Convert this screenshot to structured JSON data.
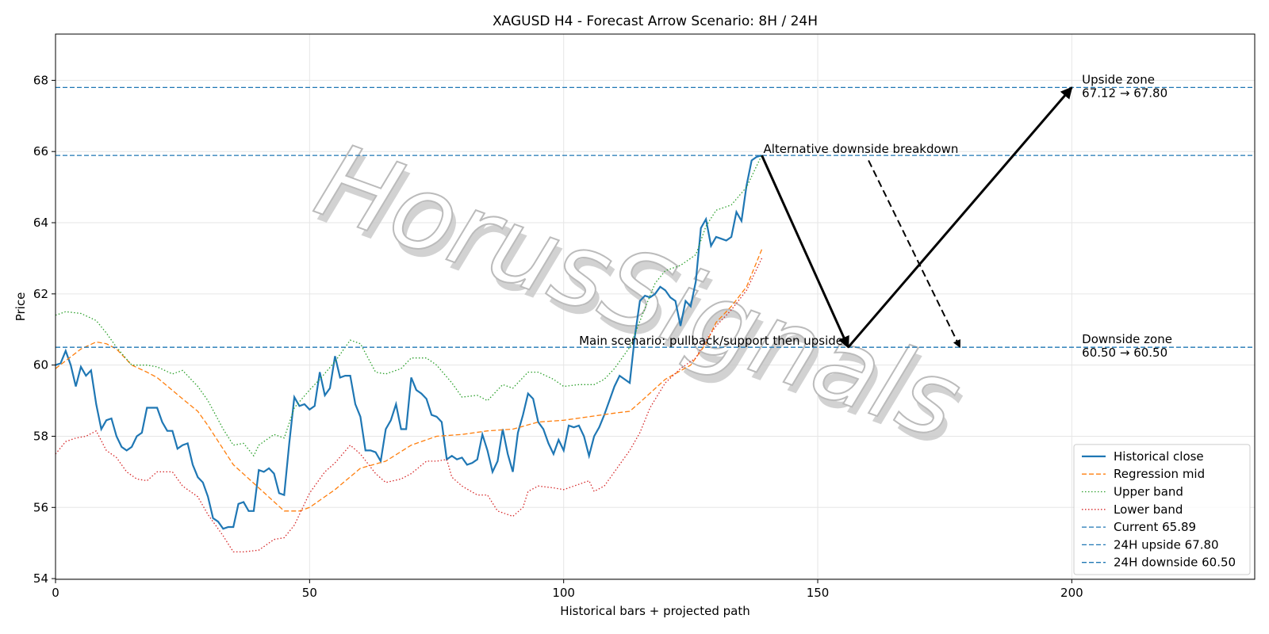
{
  "chart_data": {
    "type": "line",
    "title": "XAGUSD H4 - Forecast Arrow Scenario: 8H / 24H",
    "xlabel": "Historical bars + projected path",
    "ylabel": "Price",
    "watermark": "HorusSignals",
    "xlim": [
      0,
      236
    ],
    "ylim": [
      53.98,
      69.3
    ],
    "xticks": [
      0,
      50,
      100,
      150,
      200
    ],
    "yticks": [
      54,
      56,
      58,
      60,
      62,
      64,
      66,
      68
    ],
    "grid": true,
    "legend": "lower right",
    "series": [
      {
        "name": "Historical close",
        "color": "#1f77b4",
        "style": "solid",
        "x": [
          0,
          1,
          2,
          3,
          4,
          5,
          6,
          7,
          8,
          9,
          10,
          11,
          12,
          13,
          14,
          15,
          16,
          17,
          18,
          19,
          20,
          21,
          22,
          23,
          24,
          25,
          26,
          27,
          28,
          29,
          30,
          31,
          32,
          33,
          34,
          35,
          36,
          37,
          38,
          39,
          40,
          41,
          42,
          43,
          44,
          45,
          46,
          47,
          48,
          49,
          50,
          51,
          52,
          53,
          54,
          55,
          56,
          57,
          58,
          59,
          60,
          61,
          62,
          63,
          64,
          65,
          66,
          67,
          68,
          69,
          70,
          71,
          72,
          73,
          74,
          75,
          76,
          77,
          78,
          79,
          80,
          81,
          82,
          83,
          84,
          85,
          86,
          87,
          88,
          89,
          90,
          91,
          92,
          93,
          94,
          95,
          96,
          97,
          98,
          99,
          100,
          101,
          102,
          103,
          104,
          105,
          106,
          107,
          108,
          109,
          110,
          111,
          112,
          113,
          114,
          115,
          116,
          117,
          118,
          119,
          120,
          121,
          122,
          123,
          124,
          125,
          126,
          127,
          128,
          129,
          130,
          131,
          132,
          133,
          134,
          135,
          136,
          137,
          138,
          139
        ],
        "values": [
          60.0,
          60.05,
          60.4,
          60.0,
          59.4,
          59.95,
          59.7,
          59.85,
          58.9,
          58.2,
          58.45,
          58.5,
          58.0,
          57.7,
          57.6,
          57.7,
          58.0,
          58.1,
          58.8,
          58.8,
          58.8,
          58.4,
          58.15,
          58.15,
          57.65,
          57.75,
          57.8,
          57.2,
          56.85,
          56.7,
          56.3,
          55.7,
          55.6,
          55.4,
          55.45,
          55.45,
          56.1,
          56.15,
          55.9,
          55.9,
          57.05,
          57.0,
          57.1,
          56.95,
          56.4,
          56.35,
          57.8,
          59.1,
          58.85,
          58.9,
          58.75,
          58.85,
          59.8,
          59.15,
          59.35,
          60.25,
          59.65,
          59.7,
          59.7,
          58.9,
          58.55,
          57.6,
          57.6,
          57.55,
          57.3,
          58.2,
          58.45,
          58.9,
          58.2,
          58.2,
          59.65,
          59.3,
          59.2,
          59.05,
          58.6,
          58.55,
          58.4,
          57.35,
          57.45,
          57.35,
          57.4,
          57.2,
          57.25,
          57.35,
          58.05,
          57.6,
          57.0,
          57.3,
          58.2,
          57.5,
          57.0,
          58.1,
          58.6,
          59.2,
          59.05,
          58.4,
          58.2,
          57.8,
          57.5,
          57.9,
          57.6,
          58.3,
          58.25,
          58.3,
          58.0,
          57.45,
          58.0,
          58.25,
          58.6,
          59.0,
          59.4,
          59.7,
          59.6,
          59.5,
          60.8,
          61.8,
          61.95,
          61.9,
          62.0,
          62.2,
          62.1,
          61.9,
          61.8,
          61.1,
          61.8,
          61.65,
          62.35,
          63.85,
          64.1,
          63.35,
          63.6,
          63.55,
          63.5,
          63.6,
          64.3,
          64.05,
          65.05,
          65.75,
          65.85,
          65.89
        ]
      },
      {
        "name": "Regression mid",
        "color": "#ff7f0e",
        "style": "dashed",
        "x": [
          0,
          5,
          8,
          10,
          12,
          15,
          18,
          20,
          25,
          28,
          30,
          35,
          40,
          45,
          48,
          50,
          55,
          60,
          65,
          70,
          75,
          80,
          85,
          90,
          95,
          100,
          105,
          110,
          113,
          115,
          120,
          125,
          128,
          130,
          133,
          136,
          139
        ],
        "values": [
          59.9,
          60.45,
          60.65,
          60.6,
          60.45,
          60.0,
          59.8,
          59.65,
          59.05,
          58.7,
          58.3,
          57.2,
          56.55,
          55.9,
          55.9,
          56.0,
          56.5,
          57.1,
          57.3,
          57.75,
          58.0,
          58.05,
          58.15,
          58.2,
          58.4,
          58.45,
          58.55,
          58.65,
          58.7,
          58.95,
          59.6,
          60.0,
          60.6,
          61.2,
          61.65,
          62.2,
          63.25
        ]
      },
      {
        "name": "Upper band",
        "color": "#2ca02c",
        "style": "dotted",
        "x": [
          0,
          2,
          5,
          8,
          10,
          12,
          15,
          18,
          20,
          23,
          25,
          28,
          30,
          33,
          35,
          37,
          39,
          40,
          43,
          45,
          47,
          50,
          52,
          55,
          58,
          60,
          63,
          65,
          68,
          70,
          73,
          75,
          78,
          80,
          83,
          85,
          88,
          90,
          93,
          95,
          98,
          100,
          103,
          106,
          108,
          110,
          113,
          116,
          118,
          120,
          123,
          126,
          128,
          130,
          133,
          136,
          139
        ],
        "values": [
          61.4,
          61.5,
          61.45,
          61.25,
          60.9,
          60.5,
          60.0,
          60.0,
          59.95,
          59.75,
          59.85,
          59.4,
          59.0,
          58.2,
          57.75,
          57.8,
          57.45,
          57.75,
          58.05,
          57.95,
          58.8,
          59.3,
          59.6,
          60.1,
          60.7,
          60.6,
          59.8,
          59.75,
          59.9,
          60.2,
          60.2,
          60.0,
          59.5,
          59.1,
          59.15,
          59.0,
          59.45,
          59.35,
          59.8,
          59.8,
          59.6,
          59.4,
          59.45,
          59.45,
          59.6,
          59.9,
          60.5,
          61.6,
          62.3,
          62.65,
          62.8,
          63.1,
          63.9,
          64.35,
          64.5,
          65.0,
          65.9
        ]
      },
      {
        "name": "Lower band",
        "color": "#d62728",
        "style": "dotted",
        "x": [
          0,
          2,
          4,
          6,
          8,
          10,
          12,
          14,
          16,
          18,
          20,
          23,
          25,
          28,
          30,
          33,
          35,
          37,
          40,
          43,
          45,
          47,
          50,
          53,
          55,
          58,
          60,
          63,
          65,
          68,
          70,
          73,
          75,
          77,
          78,
          80,
          83,
          85,
          87,
          90,
          92,
          93,
          95,
          98,
          100,
          103,
          105,
          106,
          108,
          110,
          113,
          115,
          117,
          120,
          123,
          126,
          128,
          130,
          133,
          136,
          139
        ],
        "values": [
          57.5,
          57.85,
          57.95,
          58.0,
          58.15,
          57.6,
          57.4,
          57.0,
          56.8,
          56.75,
          57.0,
          57.0,
          56.6,
          56.3,
          55.8,
          55.2,
          54.75,
          54.75,
          54.8,
          55.1,
          55.15,
          55.5,
          56.4,
          57.0,
          57.25,
          57.75,
          57.5,
          56.95,
          56.7,
          56.8,
          56.95,
          57.3,
          57.3,
          57.35,
          56.85,
          56.6,
          56.35,
          56.35,
          55.9,
          55.75,
          56.0,
          56.45,
          56.6,
          56.55,
          56.5,
          56.65,
          56.75,
          56.45,
          56.6,
          57.0,
          57.6,
          58.1,
          58.8,
          59.5,
          59.9,
          60.2,
          60.7,
          61.1,
          61.55,
          62.1,
          63.0
        ]
      }
    ],
    "hlines": [
      {
        "name": "Current 65.89",
        "value": 65.89,
        "color": "#1f77b4"
      },
      {
        "name": "24H upside 67.80",
        "value": 67.8,
        "color": "#1f77b4"
      },
      {
        "name": "24H downside 60.50",
        "value": 60.5,
        "color": "#1f77b4"
      }
    ],
    "arrows": [
      {
        "from": [
          139,
          65.89
        ],
        "to": [
          156,
          60.5
        ],
        "style": "solid"
      },
      {
        "from": [
          156,
          60.5
        ],
        "to": [
          200,
          67.8
        ],
        "style": "solid"
      },
      {
        "from": [
          160,
          65.75
        ],
        "to": [
          178,
          60.5
        ],
        "style": "dashed"
      }
    ],
    "annotations": [
      {
        "lines": [
          "Alternative downside breakdown"
        ],
        "x": 139.3,
        "y": 65.89,
        "anchor": "start"
      },
      {
        "lines": [
          "Main scenario: pullback/support then upside"
        ],
        "x": 155,
        "y": 60.5,
        "anchor": "end"
      },
      {
        "lines": [
          "Upside zone",
          "67.12 → 67.80"
        ],
        "x": 202,
        "y": 67.8,
        "anchor": "start"
      },
      {
        "lines": [
          "Downside zone",
          "60.50 → 60.50"
        ],
        "x": 202,
        "y": 60.5,
        "anchor": "start"
      }
    ]
  }
}
